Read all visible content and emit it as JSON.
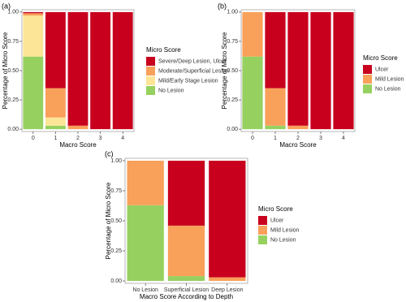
{
  "chart_data": [
    {
      "type": "bar",
      "stacked": true,
      "panel_label": "(a)",
      "x_label": "Macro Score",
      "y_label": "Percentage of Micro Score",
      "legend_title": "Micro Score",
      "categories": [
        "0",
        "1",
        "2",
        "3",
        "4"
      ],
      "series": [
        {
          "name": "No Lesion",
          "color": "#96d160",
          "values": [
            0.62,
            0.03,
            0,
            0,
            0
          ]
        },
        {
          "name": "Mild/Early Stage Lesion",
          "color": "#fde597",
          "values": [
            0.35,
            0.07,
            0,
            0,
            0
          ]
        },
        {
          "name": "Moderate/Superficial Lesion",
          "color": "#f9a05a",
          "values": [
            0.02,
            0.25,
            0.03,
            0,
            0
          ]
        },
        {
          "name": "Severe/Deep Lesion, Ulcer",
          "color": "#c8001e",
          "values": [
            0.01,
            0.65,
            0.97,
            1,
            1
          ]
        }
      ],
      "ylim": [
        -0.02,
        1.02
      ],
      "yticks": [
        {
          "value": 0,
          "label": "0.00"
        },
        {
          "value": 0.25,
          "label": "0.25"
        },
        {
          "value": 0.5,
          "label": "0.50"
        },
        {
          "value": 0.75,
          "label": "0.75"
        },
        {
          "value": 1,
          "label": "1.00"
        }
      ]
    },
    {
      "type": "bar",
      "stacked": true,
      "panel_label": "(b)",
      "x_label": "Macro Score",
      "y_label": "Percentage of Micro Score",
      "legend_title": "Micro Score",
      "categories": [
        "0",
        "1",
        "2",
        "3",
        "4"
      ],
      "series": [
        {
          "name": "No Lesion",
          "color": "#96d160",
          "values": [
            0.62,
            0.03,
            0,
            0,
            0
          ]
        },
        {
          "name": "Mild Lesion",
          "color": "#f9a05a",
          "values": [
            0.38,
            0.32,
            0.03,
            0,
            0
          ]
        },
        {
          "name": "Ulcer",
          "color": "#c8001e",
          "values": [
            0,
            0.65,
            0.97,
            1,
            1
          ]
        }
      ],
      "ylim": [
        -0.02,
        1.02
      ],
      "yticks": [
        {
          "value": 0,
          "label": "0.00"
        },
        {
          "value": 0.25,
          "label": "0.25"
        },
        {
          "value": 0.5,
          "label": "0.50"
        },
        {
          "value": 0.75,
          "label": "0.75"
        },
        {
          "value": 1,
          "label": "1.00"
        }
      ]
    },
    {
      "type": "bar",
      "stacked": true,
      "panel_label": "(c)",
      "x_label": "Macro Score According to Depth",
      "y_label": "Percentage of Micro Score",
      "legend_title": "Micro Score",
      "categories": [
        "No Lesion",
        "Superficial Lesion",
        "Deep Lesion"
      ],
      "series": [
        {
          "name": "No Lesion",
          "color": "#96d160",
          "values": [
            0.63,
            0.04,
            0
          ]
        },
        {
          "name": "Mild Lesion",
          "color": "#f9a05a",
          "values": [
            0.37,
            0.42,
            0.03
          ]
        },
        {
          "name": "Ulcer",
          "color": "#c8001e",
          "values": [
            0,
            0.54,
            0.97
          ]
        }
      ],
      "ylim": [
        -0.02,
        1.02
      ],
      "yticks": [
        {
          "value": 0,
          "label": "0.00"
        },
        {
          "value": 0.25,
          "label": "0.25"
        },
        {
          "value": 0.5,
          "label": "0.50"
        },
        {
          "value": 0.75,
          "label": "0.75"
        },
        {
          "value": 1,
          "label": "1.00"
        }
      ]
    }
  ]
}
